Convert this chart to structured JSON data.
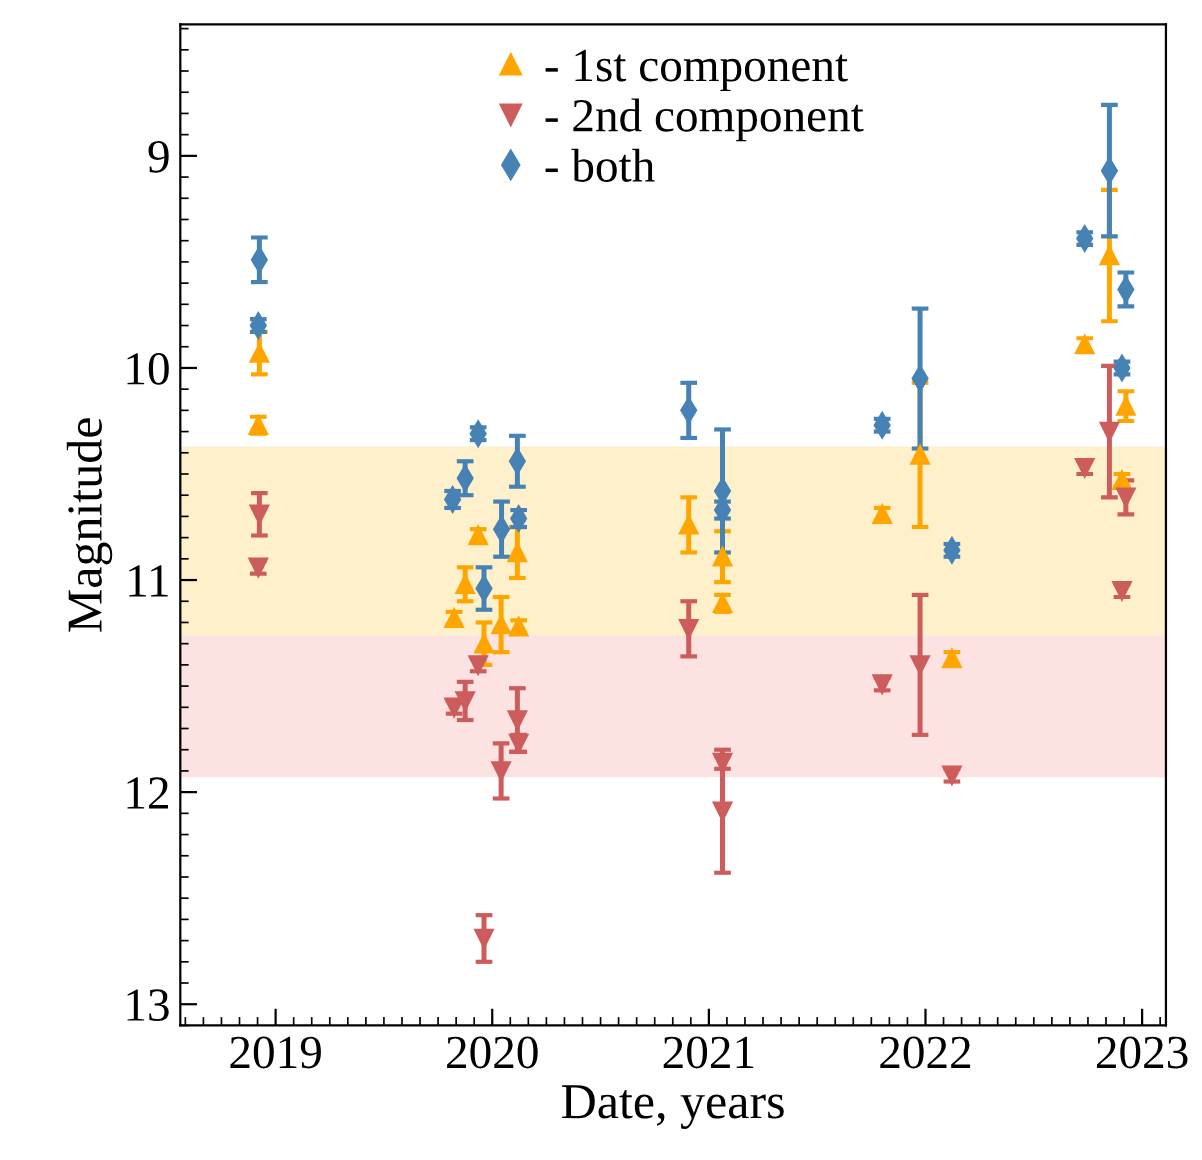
{
  "chart_data": {
    "type": "scatter",
    "xlabel": "Date, years",
    "ylabel": "Magnitude",
    "xlim": [
      2018.56,
      2023.11
    ],
    "xticks": [
      2019,
      2020,
      2021,
      2022,
      2023
    ],
    "ylim": [
      13.1,
      8.38
    ],
    "yticks": [
      9,
      10,
      11,
      12,
      13
    ],
    "grid": false,
    "legend": "top",
    "bands": [
      {
        "axis": "y",
        "from": 10.37,
        "to": 11.26,
        "color": "#fff0cc"
      },
      {
        "axis": "y",
        "from": 11.26,
        "to": 11.93,
        "color": "#fde2e2"
      }
    ],
    "series": [
      {
        "name": "- 1st component",
        "color": "#ffa500",
        "marker": "triangle",
        "x": [
          2018.925,
          2018.92,
          2019.935,
          2020.116,
          2019.875,
          2019.824,
          2019.962,
          2020.041,
          2020.122,
          2020.907,
          2021.063,
          2021.063,
          2021.8,
          2021.975,
          2022.122,
          2022.735,
          2022.849,
          2022.925,
          2022.907
        ],
        "values": [
          9.93,
          10.27,
          10.79,
          10.87,
          11.02,
          11.18,
          11.3,
          11.21,
          11.22,
          10.74,
          10.89,
          11.11,
          10.69,
          10.41,
          11.37,
          9.89,
          9.47,
          10.18,
          10.53
        ],
        "errors": [
          0.1,
          0.04,
          0.03,
          0.12,
          0.08,
          0.03,
          0.1,
          0.13,
          0.03,
          0.13,
          0.12,
          0.04,
          0.03,
          0.34,
          0.03,
          0.03,
          0.31,
          0.07,
          0.03
        ]
      },
      {
        "name": "- 2nd component",
        "color": "#cd5c5c",
        "marker": "triangle-down",
        "x": [
          2018.925,
          2018.92,
          2019.935,
          2019.824,
          2019.875,
          2020.116,
          2020.122,
          2020.041,
          2019.962,
          2020.907,
          2021.063,
          2021.063,
          2021.8,
          2021.975,
          2022.122,
          2022.735,
          2022.849,
          2022.925,
          2022.907
        ],
        "values": [
          10.69,
          10.94,
          11.4,
          11.6,
          11.57,
          11.66,
          11.77,
          11.9,
          12.69,
          11.23,
          11.86,
          12.09,
          11.49,
          11.4,
          11.92,
          10.47,
          10.3,
          10.61,
          11.05
        ],
        "errors": [
          0.1,
          0.03,
          0.03,
          0.03,
          0.09,
          0.15,
          0.04,
          0.13,
          0.11,
          0.13,
          0.03,
          0.29,
          0.03,
          0.33,
          0.03,
          0.03,
          0.31,
          0.08,
          0.03
        ]
      },
      {
        "name": "- both",
        "color": "#4682b4",
        "marker": "diamond",
        "x": [
          2018.925,
          2018.92,
          2019.817,
          2019.875,
          2019.935,
          2020.116,
          2020.043,
          2020.122,
          2019.962,
          2020.907,
          2021.063,
          2021.063,
          2021.8,
          2021.975,
          2022.122,
          2022.735,
          2022.849,
          2022.925,
          2022.907
        ],
        "values": [
          9.49,
          9.8,
          10.62,
          10.52,
          10.31,
          10.44,
          10.76,
          10.71,
          11.04,
          10.2,
          10.58,
          10.67,
          10.27,
          10.05,
          10.86,
          9.39,
          9.07,
          9.63,
          10.0
        ],
        "errors": [
          0.105,
          0.03,
          0.04,
          0.08,
          0.03,
          0.12,
          0.13,
          0.04,
          0.1,
          0.13,
          0.29,
          0.04,
          0.03,
          0.33,
          0.03,
          0.03,
          0.31,
          0.08,
          0.03
        ]
      }
    ]
  }
}
